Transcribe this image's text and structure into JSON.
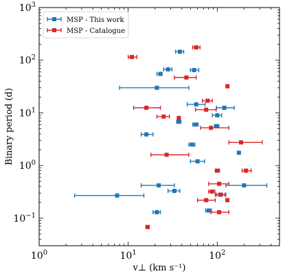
{
  "chart_data": {
    "type": "scatter",
    "xscale": "log",
    "yscale": "log",
    "xlim": [
      1,
      500
    ],
    "ylim": [
      0.03,
      1000
    ],
    "xlabel": "v⊥ (km s⁻¹)",
    "ylabel": "Binary period (d)",
    "xticks": [
      {
        "value": 1,
        "base": "10",
        "exp": "0"
      },
      {
        "value": 10,
        "base": "10",
        "exp": "1"
      },
      {
        "value": 100,
        "base": "10",
        "exp": "2"
      }
    ],
    "yticks": [
      {
        "value": 0.1,
        "base": "10",
        "exp": "−1"
      },
      {
        "value": 1,
        "base": "10",
        "exp": "0"
      },
      {
        "value": 10,
        "base": "10",
        "exp": "1"
      },
      {
        "value": 100,
        "base": "10",
        "exp": "2"
      },
      {
        "value": 1000,
        "base": "10",
        "exp": "3"
      }
    ],
    "legend_position": "top-left",
    "series": [
      {
        "name": "MSP - This work",
        "color": "#1f77b4",
        "points": [
          {
            "x": 38,
            "y": 145,
            "xerr": [
              34,
              42
            ]
          },
          {
            "x": 55,
            "y": 65,
            "xerr": [
              50,
              62
            ]
          },
          {
            "x": 28,
            "y": 67,
            "xerr": [
              25,
              31
            ]
          },
          {
            "x": 23,
            "y": 55,
            "xerr": [
              21,
              24
            ]
          },
          {
            "x": 21,
            "y": 30,
            "xerr": [
              8,
              48
            ]
          },
          {
            "x": 58,
            "y": 14.5,
            "xerr": [
              46,
              73
            ]
          },
          {
            "x": 120,
            "y": 12.5,
            "xerr": [
              98,
              155
            ]
          },
          {
            "x": 100,
            "y": 9,
            "xerr": [
              88,
              112
            ]
          },
          {
            "x": 37,
            "y": 6.8,
            "xerr": [
              35,
              39
            ]
          },
          {
            "x": 57,
            "y": 6,
            "xerr": [
              53,
              61
            ]
          },
          {
            "x": 98,
            "y": 5.6,
            "xerr": [
              93,
              104
            ]
          },
          {
            "x": 16,
            "y": 3.9,
            "xerr": [
              14,
              19
            ]
          },
          {
            "x": 52,
            "y": 2.5,
            "xerr": [
              48,
              56
            ]
          },
          {
            "x": 175,
            "y": 1.75,
            "xerr": [
              170,
              180
            ]
          },
          {
            "x": 60,
            "y": 1.2,
            "xerr": [
              50,
              72
            ]
          },
          {
            "x": 22,
            "y": 0.42,
            "xerr": [
              14,
              33
            ]
          },
          {
            "x": 33,
            "y": 0.33,
            "xerr": [
              28,
              38
            ]
          },
          {
            "x": 200,
            "y": 0.42,
            "xerr": [
              125,
              360
            ]
          },
          {
            "x": 7.5,
            "y": 0.27,
            "xerr": [
              2.5,
              15
            ]
          },
          {
            "x": 110,
            "y": 0.28,
            "xerr": [
              98,
              125
            ]
          },
          {
            "x": 21,
            "y": 0.13,
            "xerr": [
              19,
              23
            ]
          },
          {
            "x": 80,
            "y": 0.14,
            "xerr": [
              74,
              86
            ]
          }
        ]
      },
      {
        "name": "MSP - Catalogue",
        "color": "#d62728",
        "points": [
          {
            "x": 58,
            "y": 175,
            "xerr": [
              53,
              64
            ]
          },
          {
            "x": 11,
            "y": 115,
            "xerr": [
              10,
              12.5
            ]
          },
          {
            "x": 45,
            "y": 47,
            "xerr": [
              33,
              58
            ]
          },
          {
            "x": 130,
            "y": 32,
            "xerr": [
              127,
              133
            ]
          },
          {
            "x": 78,
            "y": 17,
            "xerr": [
              68,
              88
            ]
          },
          {
            "x": 16,
            "y": 12.5,
            "xerr": [
              11.5,
              23
            ]
          },
          {
            "x": 75,
            "y": 11.5,
            "xerr": [
              57,
              97
            ]
          },
          {
            "x": 25,
            "y": 8.5,
            "xerr": [
              21,
              29
            ]
          },
          {
            "x": 37,
            "y": 8,
            "xerr": [
              36,
              38
            ]
          },
          {
            "x": 85,
            "y": 5.2,
            "xerr": [
              65,
              135
            ]
          },
          {
            "x": 185,
            "y": 2.75,
            "xerr": [
              135,
              320
            ]
          },
          {
            "x": 27,
            "y": 1.6,
            "xerr": [
              18,
              48
            ]
          },
          {
            "x": 100,
            "y": 0.8,
            "xerr": [
              95,
              106
            ]
          },
          {
            "x": 210,
            "y": 0.8,
            "xerr": [
              190,
              240
            ]
          },
          {
            "x": 105,
            "y": 0.45,
            "xerr": [
              80,
              135
            ]
          },
          {
            "x": 87,
            "y": 0.32,
            "xerr": [
              80,
              94
            ]
          },
          {
            "x": 108,
            "y": 0.28,
            "xerr": [
              95,
              122
            ]
          },
          {
            "x": 75,
            "y": 0.22,
            "xerr": [
              60,
              95
            ]
          },
          {
            "x": 130,
            "y": 0.22,
            "xerr": [
              125,
              135
            ]
          },
          {
            "x": 105,
            "y": 0.13,
            "xerr": [
              85,
              135
            ]
          },
          {
            "x": 16.5,
            "y": 0.068,
            "xerr": [
              15.8,
              17.2
            ]
          }
        ]
      }
    ]
  }
}
